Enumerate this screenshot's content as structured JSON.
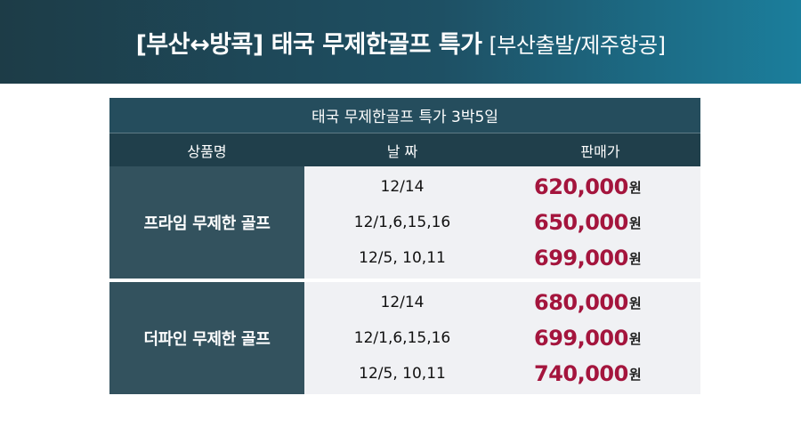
{
  "banner": {
    "title": "[부산↔방콕] 태국 무제한골프 특가",
    "subtitle": "[부산출발/제주항공]"
  },
  "table": {
    "title": "태국 무제한골프 특가 3박5일",
    "headers": {
      "product": "상품명",
      "date": "날 짜",
      "price": "판매가"
    },
    "currency_unit": "원",
    "groups": [
      {
        "name": "프라임 무제한 골프",
        "rows": [
          {
            "date": "12/14",
            "price": "620,000"
          },
          {
            "date": "12/1,6,15,16",
            "price": "650,000"
          },
          {
            "date": "12/5, 10,11",
            "price": "699,000"
          }
        ]
      },
      {
        "name": "더파인 무제한 골프",
        "rows": [
          {
            "date": "12/14",
            "price": "680,000"
          },
          {
            "date": "12/1,6,15,16",
            "price": "699,000"
          },
          {
            "date": "12/5, 10,11",
            "price": "740,000"
          }
        ]
      }
    ]
  },
  "colors": {
    "banner_start": "#1d3c47",
    "banner_end": "#1b7e9c",
    "title_row": "#254d5d",
    "header_row": "#203f4b",
    "group_label": "#33525e",
    "body_bg": "#f0f1f4",
    "price": "#a4153d"
  }
}
